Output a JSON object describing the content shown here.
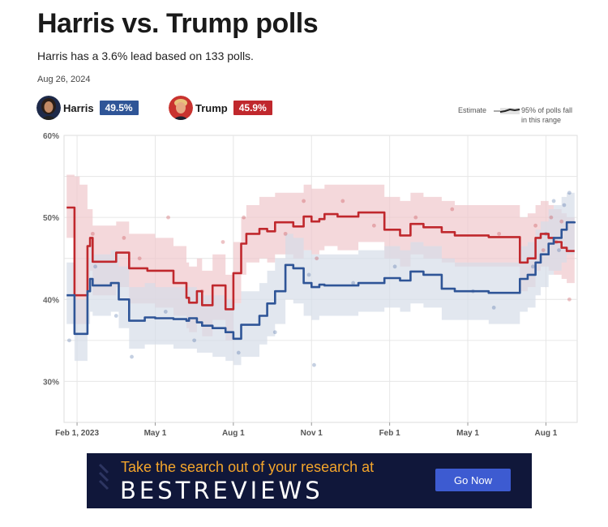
{
  "header": {
    "title": "Harris vs. Trump polls",
    "subtitle": "Harris has a 3.6% lead based on 133 polls.",
    "date": "Aug 26, 2024"
  },
  "candidates": [
    {
      "name": "Harris",
      "value": "49.5%",
      "color": "#2f5597"
    },
    {
      "name": "Trump",
      "value": "45.9%",
      "color": "#c0282d"
    }
  ],
  "legend": {
    "estimate_label": "Estimate",
    "band_label_line1": "95% of polls fall",
    "band_label_line2": "in this range"
  },
  "ad": {
    "tagline": "Take the search out of your research at",
    "logo": "BESTREVIEWS",
    "button": "Go Now"
  },
  "chart_data": {
    "type": "line",
    "ylim": [
      25,
      60
    ],
    "yticks": [
      30,
      40,
      50,
      60
    ],
    "ytick_labels": [
      "30%",
      "40%",
      "50%",
      "60%"
    ],
    "x_range": [
      -0.5,
      19.2
    ],
    "xticks": [
      0,
      3,
      6,
      9,
      12,
      15,
      18
    ],
    "xtick_labels": [
      "Feb 1, 2023",
      "May 1",
      "Aug 1",
      "Nov 1",
      "Feb 1",
      "May 1",
      "Aug 1"
    ],
    "grid": true,
    "series": [
      {
        "name": "Trump",
        "color": "#c0282d",
        "band_color": "#f0c8cc",
        "x": [
          -0.4,
          -0.1,
          0.1,
          0.4,
          0.5,
          0.6,
          0.7,
          0.8,
          1.3,
          1.5,
          2.0,
          2.7,
          3.0,
          3.7,
          4.2,
          4.3,
          4.6,
          4.8,
          5.2,
          5.7,
          6.0,
          6.3,
          6.5,
          7.0,
          7.3,
          7.6,
          8.0,
          8.3,
          8.7,
          9.0,
          9.3,
          9.5,
          10.0,
          10.8,
          11.3,
          11.8,
          12.0,
          12.4,
          12.8,
          13.3,
          14.0,
          14.5,
          15.0,
          15.8,
          16.8,
          17.0,
          17.3,
          17.6,
          17.8,
          18.1,
          18.3,
          18.6,
          18.8,
          19.1
        ],
        "y": [
          51.2,
          40.5,
          40.5,
          46.5,
          47.5,
          44.6,
          44.6,
          44.6,
          44.6,
          45.7,
          43.8,
          43.5,
          43.5,
          42.0,
          40.2,
          39.6,
          41.0,
          39.3,
          41.7,
          38.8,
          43.2,
          46.8,
          48.0,
          48.6,
          48.3,
          49.4,
          49.4,
          48.9,
          50.1,
          49.5,
          49.8,
          50.4,
          50.1,
          50.6,
          50.6,
          48.5,
          48.5,
          47.8,
          49.2,
          48.8,
          48.2,
          47.8,
          47.8,
          47.6,
          47.6,
          44.5,
          45.0,
          47.5,
          48.0,
          47.5,
          47.0,
          46.3,
          45.9,
          45.9
        ],
        "band_upper": [
          55.2,
          55.0,
          54.0,
          51.0,
          51.0,
          49.0,
          49.0,
          49.0,
          49.0,
          49.5,
          48.0,
          48.0,
          47.5,
          46.5,
          44.5,
          44.0,
          45.0,
          43.5,
          45.5,
          43.0,
          47.0,
          50.0,
          51.5,
          52.5,
          52.5,
          53.0,
          53.0,
          53.0,
          54.0,
          53.5,
          53.5,
          54.0,
          54.0,
          54.0,
          54.0,
          52.5,
          52.5,
          52.0,
          53.0,
          52.5,
          52.0,
          51.5,
          51.5,
          51.5,
          51.5,
          50.0,
          50.5,
          51.5,
          52.0,
          51.5,
          51.0,
          50.5,
          50.0,
          50.0
        ],
        "band_lower": [
          47.5,
          37.0,
          37.0,
          42.5,
          43.5,
          40.5,
          40.5,
          40.5,
          40.5,
          41.5,
          39.5,
          39.5,
          39.0,
          38.0,
          36.5,
          36.0,
          37.0,
          35.5,
          37.5,
          35.0,
          39.5,
          43.0,
          44.5,
          45.0,
          44.5,
          45.5,
          45.5,
          45.0,
          46.0,
          45.5,
          46.0,
          46.5,
          46.0,
          47.0,
          47.0,
          45.0,
          45.0,
          44.0,
          45.5,
          45.0,
          44.5,
          44.0,
          44.0,
          44.0,
          44.0,
          41.0,
          41.5,
          43.5,
          44.0,
          43.5,
          43.0,
          42.5,
          42.0,
          42.0
        ]
      },
      {
        "name": "Harris",
        "color": "#2f5597",
        "band_color": "#d5dde8",
        "x": [
          -0.4,
          -0.1,
          0.2,
          0.4,
          0.5,
          0.6,
          0.7,
          0.8,
          1.3,
          1.6,
          2.0,
          2.6,
          3.0,
          3.7,
          4.2,
          4.3,
          4.6,
          4.8,
          5.2,
          5.7,
          6.0,
          6.3,
          6.5,
          7.0,
          7.3,
          7.6,
          8.0,
          8.3,
          8.7,
          9.0,
          9.3,
          9.5,
          10.0,
          10.8,
          11.3,
          11.8,
          12.0,
          12.4,
          12.8,
          13.3,
          14.0,
          14.5,
          15.0,
          15.8,
          16.8,
          17.0,
          17.3,
          17.6,
          17.8,
          18.1,
          18.3,
          18.6,
          18.8,
          19.1
        ],
        "y": [
          40.5,
          35.8,
          35.8,
          41.0,
          42.5,
          41.7,
          41.7,
          41.7,
          42.0,
          40.0,
          37.4,
          37.8,
          37.7,
          37.6,
          37.4,
          37.7,
          37.2,
          36.8,
          36.5,
          36.0,
          35.2,
          36.9,
          36.9,
          38.0,
          39.5,
          41.0,
          44.2,
          43.8,
          42.0,
          41.5,
          41.8,
          41.7,
          41.7,
          42.0,
          42.0,
          42.6,
          42.6,
          42.3,
          43.4,
          43.0,
          41.3,
          41.0,
          41.0,
          40.8,
          40.8,
          42.5,
          43.0,
          44.5,
          45.5,
          46.8,
          47.5,
          48.5,
          49.4,
          49.5
        ],
        "band_upper": [
          44.5,
          40.0,
          40.0,
          45.0,
          46.5,
          45.5,
          45.5,
          45.5,
          46.0,
          44.0,
          41.5,
          42.0,
          41.5,
          41.5,
          41.5,
          41.5,
          41.0,
          40.5,
          40.5,
          40.0,
          39.5,
          41.0,
          41.0,
          42.0,
          43.5,
          45.0,
          48.0,
          47.5,
          46.0,
          45.5,
          45.5,
          45.5,
          45.5,
          46.0,
          46.0,
          46.5,
          46.5,
          46.0,
          47.0,
          46.5,
          45.0,
          44.5,
          44.5,
          44.5,
          44.5,
          46.5,
          47.0,
          48.5,
          49.5,
          51.0,
          51.5,
          52.5,
          53.0,
          53.0
        ],
        "band_lower": [
          37.0,
          32.5,
          32.5,
          37.0,
          38.5,
          38.0,
          38.0,
          38.0,
          38.5,
          36.5,
          34.0,
          34.5,
          34.5,
          34.0,
          34.0,
          34.0,
          33.5,
          33.5,
          33.0,
          32.5,
          32.0,
          33.0,
          33.0,
          34.5,
          35.5,
          37.0,
          40.0,
          39.5,
          38.0,
          37.5,
          38.0,
          38.0,
          38.0,
          38.5,
          38.5,
          39.0,
          39.0,
          38.5,
          39.5,
          39.0,
          37.5,
          37.5,
          37.5,
          37.0,
          37.0,
          38.5,
          39.0,
          40.5,
          41.5,
          43.0,
          43.5,
          44.5,
          45.5,
          45.5
        ]
      }
    ],
    "polls": [
      {
        "candidate": "Trump",
        "x": 0.6,
        "y": 48.0
      },
      {
        "candidate": "Trump",
        "x": 1.8,
        "y": 47.5
      },
      {
        "candidate": "Trump",
        "x": 2.4,
        "y": 45.0
      },
      {
        "candidate": "Trump",
        "x": 3.5,
        "y": 50.0
      },
      {
        "candidate": "Trump",
        "x": 4.8,
        "y": 41.0
      },
      {
        "candidate": "Trump",
        "x": 5.6,
        "y": 47.0
      },
      {
        "candidate": "Trump",
        "x": 6.4,
        "y": 50.0
      },
      {
        "candidate": "Trump",
        "x": 8.0,
        "y": 48.0
      },
      {
        "candidate": "Trump",
        "x": 8.7,
        "y": 52.0
      },
      {
        "candidate": "Trump",
        "x": 9.2,
        "y": 45.0
      },
      {
        "candidate": "Trump",
        "x": 10.2,
        "y": 52.0
      },
      {
        "candidate": "Trump",
        "x": 11.4,
        "y": 49.0
      },
      {
        "candidate": "Trump",
        "x": 13.0,
        "y": 50.0
      },
      {
        "candidate": "Trump",
        "x": 14.4,
        "y": 51.0
      },
      {
        "candidate": "Trump",
        "x": 16.2,
        "y": 48.0
      },
      {
        "candidate": "Trump",
        "x": 17.6,
        "y": 49.0
      },
      {
        "candidate": "Trump",
        "x": 17.9,
        "y": 46.0
      },
      {
        "candidate": "Trump",
        "x": 18.2,
        "y": 50.0
      },
      {
        "candidate": "Trump",
        "x": 18.4,
        "y": 47.0
      },
      {
        "candidate": "Trump",
        "x": 18.6,
        "y": 49.5
      },
      {
        "candidate": "Trump",
        "x": 18.9,
        "y": 40.0
      },
      {
        "candidate": "Harris",
        "x": -0.3,
        "y": 35.0
      },
      {
        "candidate": "Harris",
        "x": 0.7,
        "y": 44.0
      },
      {
        "candidate": "Harris",
        "x": 1.5,
        "y": 38.0
      },
      {
        "candidate": "Harris",
        "x": 2.1,
        "y": 33.0
      },
      {
        "candidate": "Harris",
        "x": 3.4,
        "y": 38.5
      },
      {
        "candidate": "Harris",
        "x": 4.5,
        "y": 35.0
      },
      {
        "candidate": "Harris",
        "x": 6.2,
        "y": 33.5
      },
      {
        "candidate": "Harris",
        "x": 7.6,
        "y": 36.0
      },
      {
        "candidate": "Harris",
        "x": 8.9,
        "y": 43.0
      },
      {
        "candidate": "Harris",
        "x": 9.1,
        "y": 32.0
      },
      {
        "candidate": "Harris",
        "x": 10.6,
        "y": 42.0
      },
      {
        "candidate": "Harris",
        "x": 12.2,
        "y": 44.0
      },
      {
        "candidate": "Harris",
        "x": 15.2,
        "y": 41.0
      },
      {
        "candidate": "Harris",
        "x": 16.0,
        "y": 39.0
      },
      {
        "candidate": "Harris",
        "x": 17.5,
        "y": 44.0
      },
      {
        "candidate": "Harris",
        "x": 18.0,
        "y": 48.0
      },
      {
        "candidate": "Harris",
        "x": 18.3,
        "y": 52.0
      },
      {
        "candidate": "Harris",
        "x": 18.5,
        "y": 46.0
      },
      {
        "candidate": "Harris",
        "x": 18.7,
        "y": 51.5
      },
      {
        "candidate": "Harris",
        "x": 18.9,
        "y": 53.0
      }
    ]
  }
}
